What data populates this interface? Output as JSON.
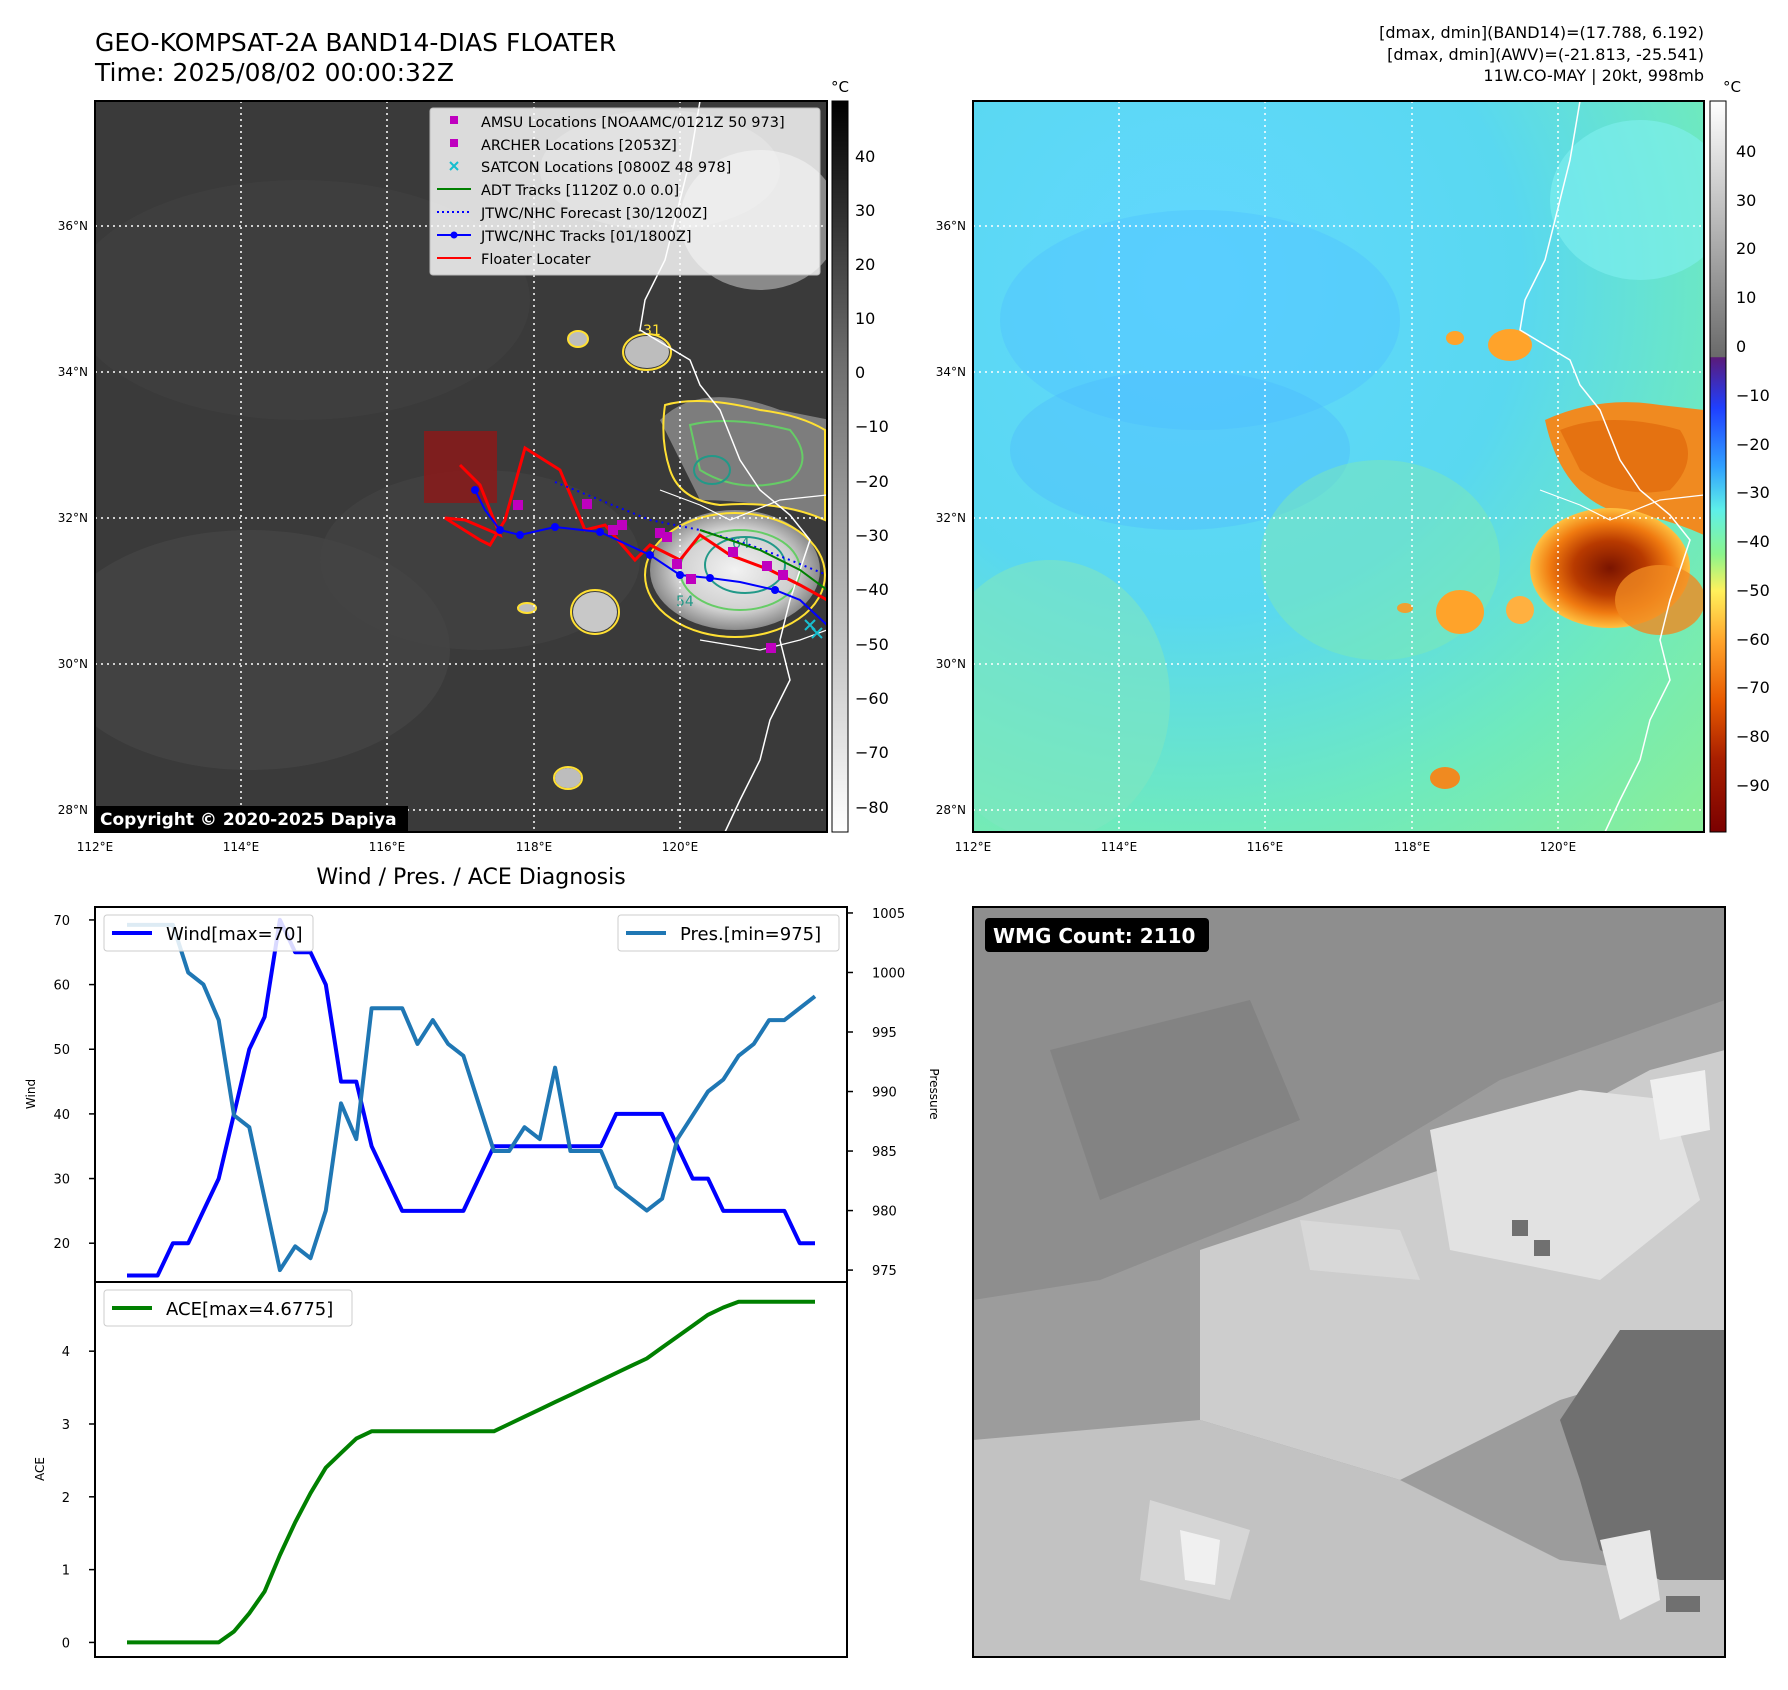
{
  "header": {
    "title_line1": "GEO-KOMPSAT-2A BAND14-DIAS FLOATER",
    "title_line2": "Time: 2025/08/02 00:00:32Z",
    "info_line1": "[dmax, dmin](BAND14)=(17.788, 6.192)",
    "info_line2": "[dmax, dmin](AWV)=(-21.813, -25.541)",
    "info_line3": "11W.CO-MAY | 20kt, 998mb"
  },
  "ir_map": {
    "lat_labels": [
      "36°N",
      "34°N",
      "32°N",
      "30°N",
      "28°N"
    ],
    "lon_labels": [
      "112°E",
      "114°E",
      "116°E",
      "118°E",
      "120°E"
    ],
    "copyright": "Copyright © 2020-2025 Dapiya",
    "colorbar_unit": "°C",
    "colorbar_ticks": [
      "40",
      "30",
      "20",
      "10",
      "0",
      "−10",
      "−20",
      "−30",
      "−40",
      "−50",
      "−60",
      "−70",
      "−80"
    ],
    "contour_labels": [
      "-31",
      "64",
      "54"
    ],
    "legend": [
      {
        "label": "AMSU Locations [NOAAMC/0121Z 50 973]",
        "color": "#bf00bf",
        "marker": "square"
      },
      {
        "label": "ARCHER Locations [2053Z]",
        "color": "#bf00bf",
        "marker": "square"
      },
      {
        "label": "SATCON Locations [0800Z 48 978]",
        "color": "#17becf",
        "marker": "x"
      },
      {
        "label": "ADT Tracks [1120Z 0.0 0.0]",
        "color": "#008000",
        "marker": "line"
      },
      {
        "label": "JTWC/NHC Forecast [30/1200Z]",
        "color": "#0000ff",
        "marker": "dotted"
      },
      {
        "label": "JTWC/NHC Tracks [01/1800Z]",
        "color": "#0000ff",
        "marker": "line-dot"
      },
      {
        "label": "Floater Locater",
        "color": "#ff0000",
        "marker": "line"
      }
    ]
  },
  "awv_map": {
    "lat_labels": [
      "36°N",
      "34°N",
      "32°N",
      "30°N",
      "28°N"
    ],
    "lon_labels": [
      "112°E",
      "114°E",
      "116°E",
      "118°E",
      "120°E"
    ],
    "colorbar_unit": "°C",
    "colorbar_ticks": [
      "40",
      "30",
      "20",
      "10",
      "0",
      "−10",
      "−20",
      "−30",
      "−40",
      "−50",
      "−60",
      "−70",
      "−80",
      "−90"
    ]
  },
  "diagnosis": {
    "title": "Wind / Pres. / ACE Diagnosis",
    "ylabel_left": "Wind",
    "ylabel_right": "Pressure",
    "ylabel_ace": "ACE",
    "legend_wind": "Wind[max=70]",
    "legend_pres": "Pres.[min=975]",
    "legend_ace": "ACE[max=4.6775]",
    "wind_ticks": [
      "20",
      "30",
      "40",
      "50",
      "60",
      "70"
    ],
    "pres_ticks": [
      "975",
      "980",
      "985",
      "990",
      "995",
      "1000",
      "1005"
    ],
    "ace_ticks": [
      "0",
      "1",
      "2",
      "3",
      "4"
    ]
  },
  "wmg": {
    "label": "WMG Count: 2110"
  },
  "chart_data": [
    {
      "type": "line",
      "title": "Wind / Pres. / ACE Diagnosis",
      "ylabel": "Wind",
      "ylabel_right": "Pressure",
      "ylim": [
        14,
        72
      ],
      "ylim_right": [
        974,
        1005.5
      ],
      "series": [
        {
          "name": "Wind[max=70]",
          "color": "#0000ff",
          "values": [
            15,
            15,
            15,
            20,
            20,
            25,
            30,
            40,
            50,
            55,
            70,
            65,
            65,
            60,
            45,
            45,
            35,
            30,
            25,
            25,
            25,
            25,
            25,
            30,
            35,
            35,
            35,
            35,
            35,
            35,
            35,
            35,
            40,
            40,
            40,
            40,
            35,
            30,
            30,
            25,
            25,
            25,
            25,
            25,
            20,
            20
          ]
        },
        {
          "name": "Pres.[min=975]",
          "color": "#1f77b4",
          "values": [
            1004,
            1004,
            1004,
            1004,
            1000,
            999,
            996,
            988,
            987,
            981,
            975,
            977,
            976,
            980,
            989,
            986,
            997,
            997,
            997,
            994,
            996,
            994,
            993,
            989,
            985,
            985,
            987,
            986,
            992,
            985,
            985,
            985,
            982,
            981,
            980,
            981,
            986,
            988,
            990,
            991,
            993,
            994,
            996,
            996,
            997,
            998
          ]
        }
      ]
    },
    {
      "type": "line",
      "ylabel": "ACE",
      "ylim": [
        -0.2,
        4.95
      ],
      "series": [
        {
          "name": "ACE[max=4.6775]",
          "color": "#008000",
          "values": [
            0,
            0,
            0,
            0,
            0,
            0,
            0,
            0.15,
            0.4,
            0.7,
            1.2,
            1.65,
            2.05,
            2.4,
            2.6,
            2.8,
            2.9,
            2.9,
            2.9,
            2.9,
            2.9,
            2.9,
            2.9,
            2.9,
            2.9,
            3.0,
            3.1,
            3.2,
            3.3,
            3.4,
            3.5,
            3.6,
            3.7,
            3.8,
            3.9,
            4.05,
            4.2,
            4.35,
            4.5,
            4.6,
            4.6775,
            4.6775,
            4.6775,
            4.6775,
            4.6775,
            4.6775
          ]
        }
      ]
    }
  ]
}
